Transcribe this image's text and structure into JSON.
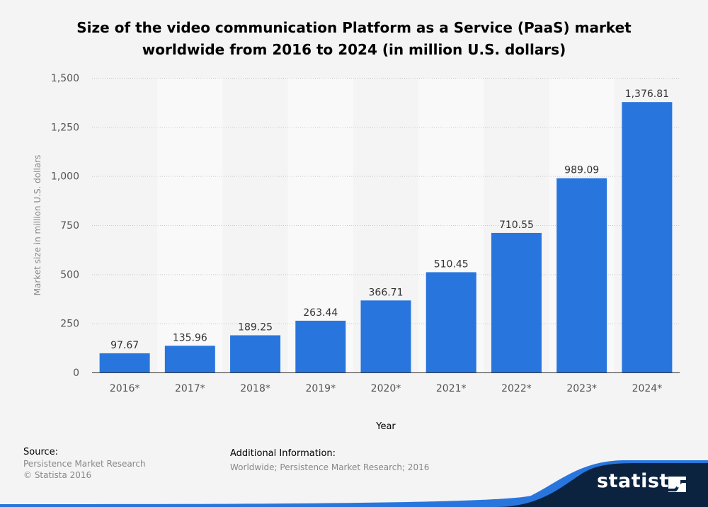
{
  "chart_data": {
    "type": "bar",
    "title": "Size of the video communication Platform as a Service (PaaS) market worldwide from 2016 to 2024 (in million U.S. dollars)",
    "title_lines": [
      "Size of the video communication Platform as a Service (PaaS) market",
      "worldwide from 2016 to 2024 (in million U.S. dollars)"
    ],
    "categories": [
      "2016*",
      "2017*",
      "2018*",
      "2019*",
      "2020*",
      "2021*",
      "2022*",
      "2023*",
      "2024*"
    ],
    "values": [
      97.67,
      135.96,
      189.25,
      263.44,
      366.71,
      510.45,
      710.55,
      989.09,
      1376.81
    ],
    "data_labels": [
      "97.67",
      "135.96",
      "189.25",
      "263.44",
      "366.71",
      "510.45",
      "710.55",
      "989.09",
      "1,376.81"
    ],
    "xlabel": "Year",
    "ylabel": "Market size in million U.S. dollars",
    "ylim": [
      0,
      1500
    ],
    "yticks": [
      0,
      250,
      500,
      750,
      1000,
      1250,
      1500
    ],
    "ytick_labels": [
      "0",
      "250",
      "500",
      "750",
      "1,000",
      "1,250",
      "1,500"
    ],
    "grid": true,
    "bar_color": "#2876dd"
  },
  "footer": {
    "source_heading": "Source:",
    "source_lines": [
      "Persistence Market Research",
      "© Statista 2016"
    ],
    "info_heading": "Additional Information:",
    "info_text": "Worldwide; Persistence Market Research; 2016"
  },
  "logo": {
    "text": "statista"
  }
}
